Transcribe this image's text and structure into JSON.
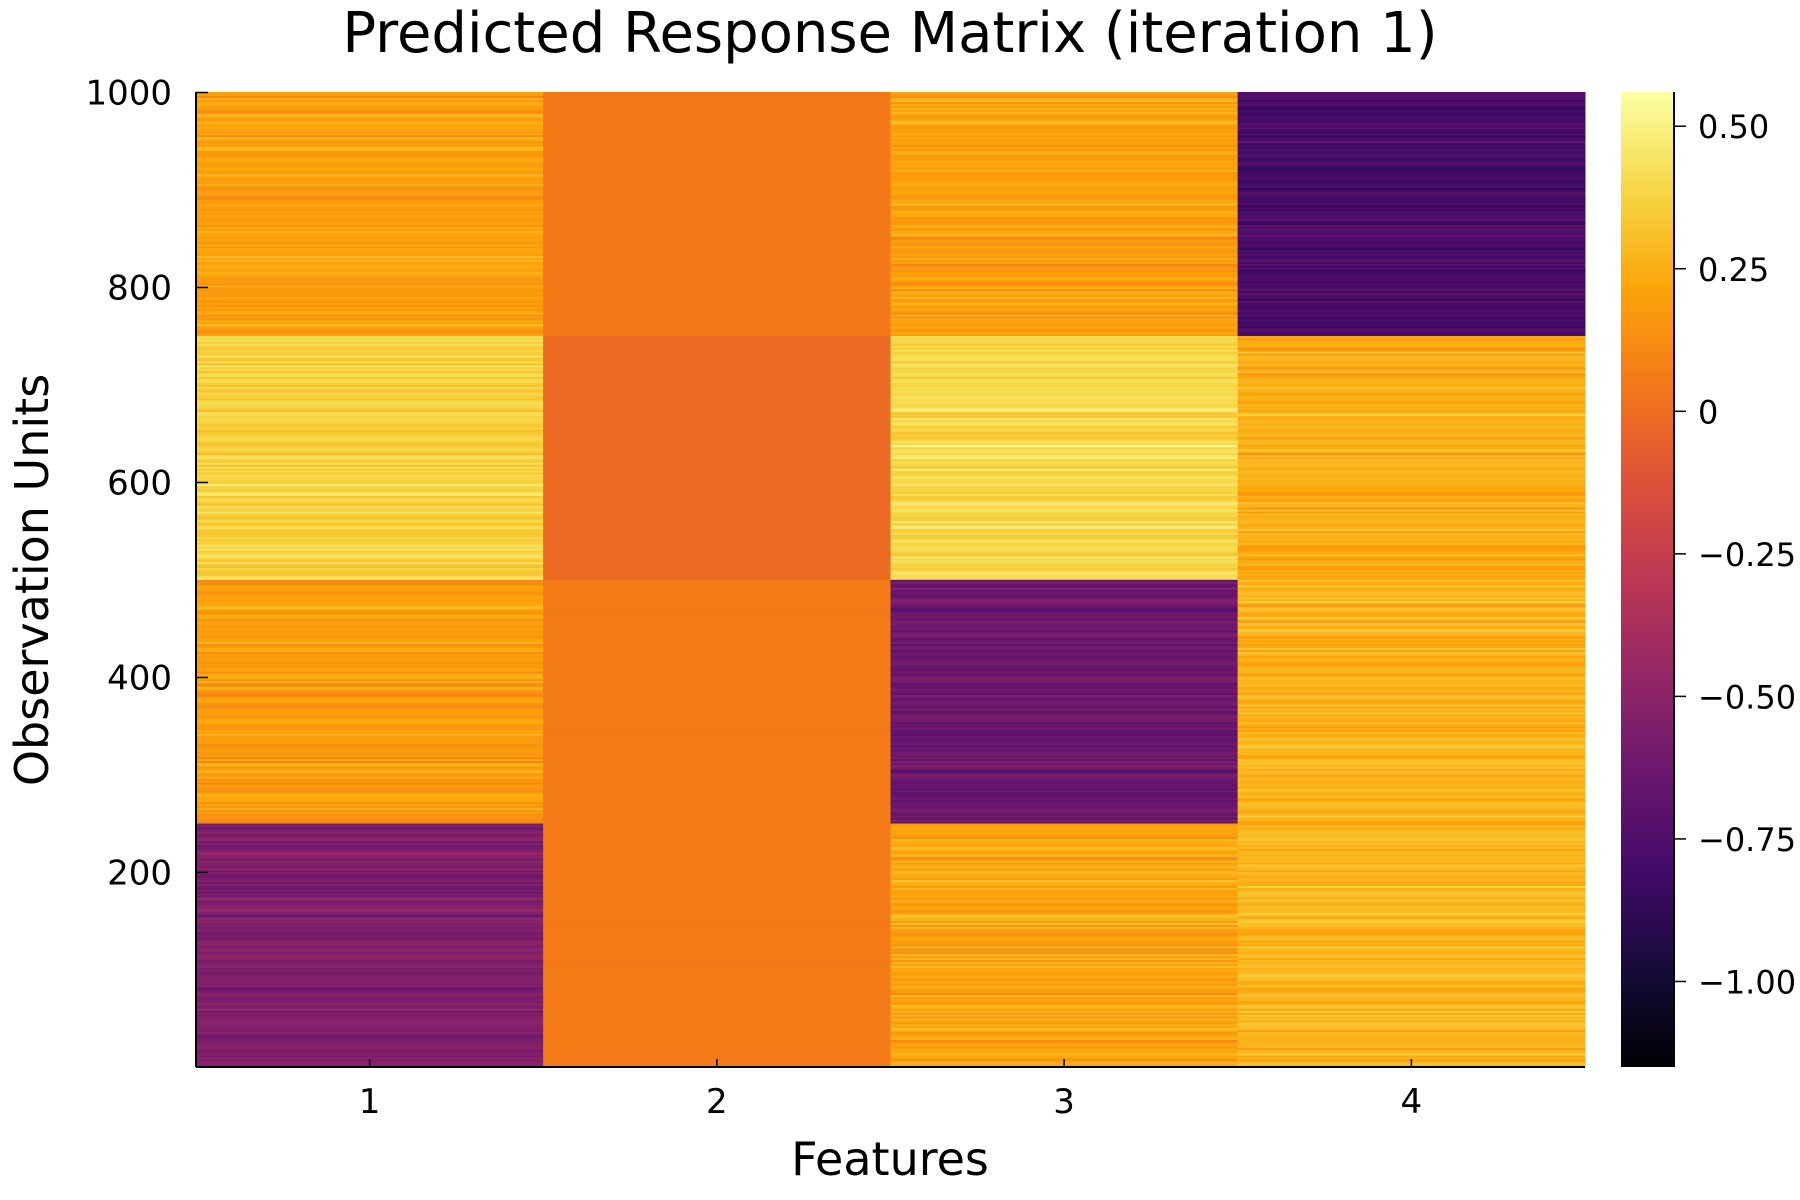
{
  "chart_data": {
    "type": "heatmap",
    "title": "Predicted Response Matrix (iteration 1)",
    "xlabel": "Features",
    "ylabel": "Observation Units",
    "x_categories": [
      "1",
      "2",
      "3",
      "4"
    ],
    "x_tick_labels": [
      "1",
      "2",
      "3",
      "4"
    ],
    "ylim": [
      1,
      1000
    ],
    "y_ticks": [
      200,
      400,
      600,
      800,
      1000
    ],
    "y_tick_labels": [
      "200",
      "400",
      "600",
      "800",
      "1000"
    ],
    "colormap": "inferno",
    "colorbar_range": [
      -1.15,
      0.56
    ],
    "colorbar_ticks": [
      -1.0,
      -0.75,
      -0.5,
      -0.25,
      0,
      0.25,
      0.5
    ],
    "colorbar_tick_labels": [
      "−1.00",
      "−0.75",
      "−0.50",
      "−0.25",
      "0",
      "0.25",
      "0.50"
    ],
    "row_blocks": [
      {
        "rows": [
          1,
          250
        ],
        "values": [
          -0.55,
          0.06,
          0.22,
          0.28
        ]
      },
      {
        "rows": [
          251,
          500
        ],
        "values": [
          0.18,
          0.06,
          -0.63,
          0.27
        ]
      },
      {
        "rows": [
          501,
          750
        ],
        "values": [
          0.38,
          -0.01,
          0.4,
          0.25
        ]
      },
      {
        "rows": [
          751,
          1000
        ],
        "values": [
          0.2,
          0.05,
          0.2,
          -0.78
        ]
      }
    ],
    "row_noise": [
      0.09,
      0.005,
      0.09,
      0.08
    ],
    "grid": false,
    "legend": "none"
  }
}
